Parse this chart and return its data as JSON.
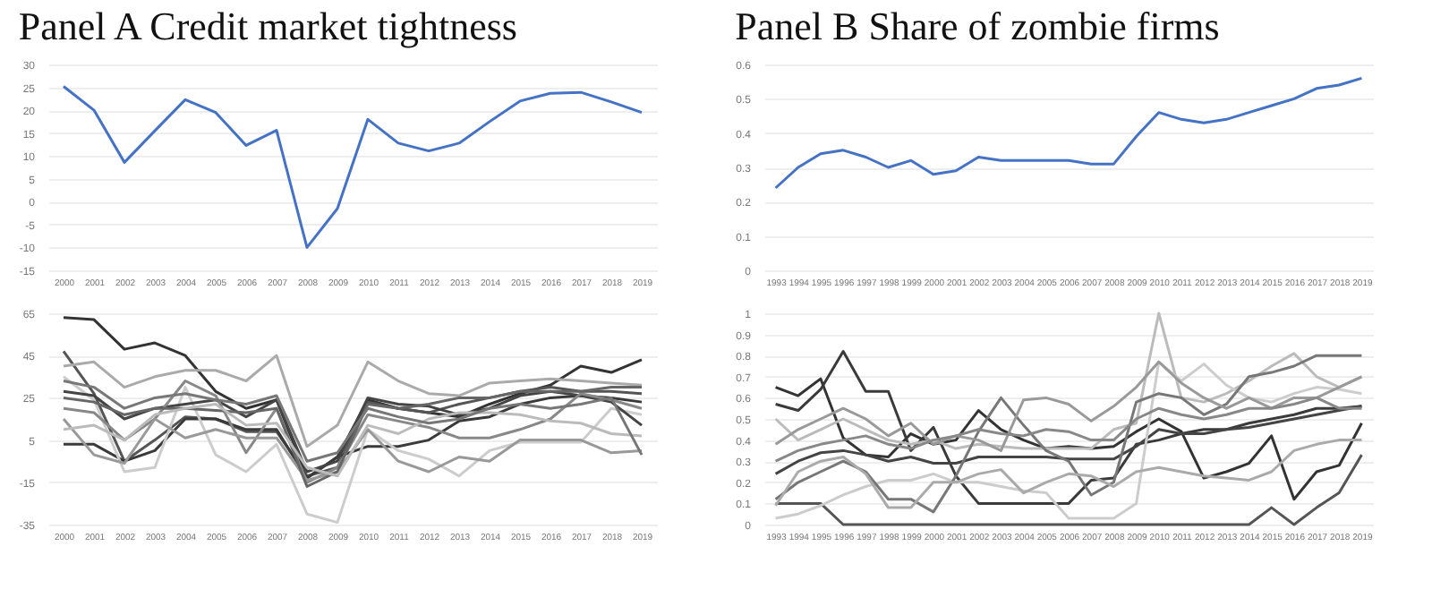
{
  "chart_data": [
    {
      "type": "line",
      "title": "Panel A Credit market tightness",
      "categories": [
        "2000",
        "2001",
        "2002",
        "2003",
        "2004",
        "2005",
        "2006",
        "2007",
        "2008",
        "2009",
        "2010",
        "2011",
        "2012",
        "2013",
        "2014",
        "2015",
        "2016",
        "2017",
        "2018",
        "2019"
      ],
      "series": [
        {
          "color": "#4472c4",
          "values": [
            25.2,
            20,
            8.6,
            15.5,
            22.3,
            19.5,
            12.3,
            15.6,
            -10,
            -1.5,
            18,
            12.8,
            11.1,
            12.8,
            17.5,
            22,
            23.7,
            23.9,
            21.8,
            19.5
          ]
        }
      ],
      "ylim": [
        -15,
        30
      ],
      "yticks": [
        -15,
        -10,
        -5,
        0,
        5,
        10,
        15,
        20,
        25,
        30
      ],
      "grid": "y"
    },
    {
      "type": "line",
      "title": "Panel B Share of zombie firms",
      "categories": [
        "1993",
        "1994",
        "1995",
        "1996",
        "1997",
        "1998",
        "1999",
        "2000",
        "2001",
        "2002",
        "2003",
        "2004",
        "2005",
        "2006",
        "2007",
        "2008",
        "2009",
        "2010",
        "2011",
        "2012",
        "2013",
        "2014",
        "2015",
        "2016",
        "2017",
        "2018",
        "2019"
      ],
      "series": [
        {
          "color": "#4472c4",
          "values": [
            0.24,
            0.3,
            0.34,
            0.35,
            0.33,
            0.3,
            0.32,
            0.28,
            0.29,
            0.33,
            0.32,
            0.32,
            0.32,
            0.32,
            0.31,
            0.31,
            0.39,
            0.46,
            0.44,
            0.43,
            0.44,
            0.46,
            0.48,
            0.5,
            0.53,
            0.54,
            0.56
          ]
        }
      ],
      "ylim": [
        0,
        0.6
      ],
      "yticks": [
        0,
        0.1,
        0.2,
        0.3,
        0.4,
        0.5,
        0.6
      ],
      "grid": "y"
    },
    {
      "type": "line",
      "categories": [
        "2000",
        "2001",
        "2002",
        "2003",
        "2004",
        "2005",
        "2006",
        "2007",
        "2008",
        "2009",
        "2010",
        "2011",
        "2012",
        "2013",
        "2014",
        "2015",
        "2016",
        "2017",
        "2018",
        "2019"
      ],
      "series": [
        {
          "color": "#333333",
          "values": [
            63,
            62,
            48,
            51,
            45,
            28,
            20,
            24,
            -13,
            -3,
            24,
            20,
            18,
            16,
            22,
            27,
            31,
            40,
            37,
            43
          ]
        },
        {
          "color": "#555555",
          "values": [
            47,
            27,
            -5,
            5,
            16,
            15,
            9,
            9,
            -12,
            -8,
            23,
            20,
            18,
            22,
            25,
            28,
            30,
            28,
            28,
            27
          ]
        },
        {
          "color": "#3a3a3a",
          "values": [
            3,
            3,
            -5,
            0,
            15,
            15,
            10,
            10,
            -13,
            -3,
            2,
            2,
            5,
            14,
            16,
            22,
            25,
            26,
            25,
            23
          ]
        },
        {
          "color": "#aaaaaa",
          "values": [
            40,
            42,
            30,
            35,
            38,
            38,
            33,
            45,
            2,
            12,
            42,
            33,
            27,
            26,
            32,
            33,
            34,
            33,
            32,
            31
          ]
        },
        {
          "color": "#cccccc",
          "values": [
            35,
            24,
            -10,
            -8,
            30,
            -2,
            -10,
            3,
            -30,
            -34,
            10,
            0,
            -4,
            -12,
            0,
            4,
            4,
            4,
            20,
            17
          ]
        },
        {
          "color": "#444444",
          "values": [
            28,
            26,
            15,
            20,
            22,
            24,
            16,
            24,
            -10,
            -5,
            25,
            22,
            21,
            17,
            20,
            26,
            28,
            26,
            23,
            12
          ]
        },
        {
          "color": "#888888",
          "values": [
            20,
            18,
            5,
            15,
            33,
            26,
            -1,
            20,
            -15,
            -8,
            17,
            14,
            11,
            6,
            6,
            10,
            15,
            27,
            24,
            20
          ]
        },
        {
          "color": "#999999",
          "values": [
            15,
            -2,
            -6,
            15,
            6,
            10,
            6,
            6,
            -14,
            -10,
            10,
            -5,
            -10,
            -3,
            -5,
            5,
            5,
            5,
            -1,
            0
          ]
        },
        {
          "color": "#666666",
          "values": [
            25,
            23,
            17,
            20,
            20,
            19,
            18,
            20,
            -17,
            -10,
            22,
            20,
            22,
            25,
            25,
            28,
            28,
            28,
            30,
            30
          ]
        },
        {
          "color": "#bbbbbb",
          "values": [
            10,
            12,
            5,
            17,
            20,
            22,
            12,
            13,
            -8,
            -12,
            12,
            8,
            15,
            18,
            18,
            17,
            14,
            13,
            8,
            7
          ]
        },
        {
          "color": "#777777",
          "values": [
            33,
            30,
            20,
            25,
            27,
            24,
            22,
            26,
            -5,
            -1,
            20,
            16,
            13,
            15,
            20,
            22,
            20,
            22,
            25,
            -2
          ]
        }
      ],
      "ylim": [
        -35,
        65
      ],
      "yticks": [
        -35,
        -15,
        5,
        25,
        45,
        65
      ],
      "grid": "y"
    },
    {
      "type": "line",
      "categories": [
        "1993",
        "1994",
        "1995",
        "1996",
        "1997",
        "1998",
        "1999",
        "2000",
        "2001",
        "2002",
        "2003",
        "2004",
        "2005",
        "2006",
        "2007",
        "2008",
        "2009",
        "2010",
        "2011",
        "2012",
        "2013",
        "2014",
        "2015",
        "2016",
        "2017",
        "2018",
        "2019"
      ],
      "series": [
        {
          "color": "#333333",
          "values": [
            0.65,
            0.61,
            0.69,
            0.41,
            0.33,
            0.32,
            0.43,
            0.38,
            0.4,
            0.54,
            0.45,
            0.4,
            0.36,
            0.37,
            0.36,
            0.37,
            0.44,
            0.5,
            0.44,
            0.22,
            0.25,
            0.29,
            0.42,
            0.12,
            0.25,
            0.28,
            0.48
          ]
        },
        {
          "color": "#3a3a3a",
          "values": [
            0.57,
            0.54,
            0.64,
            0.82,
            0.63,
            0.63,
            0.35,
            0.46,
            0.23,
            0.1,
            0.1,
            0.1,
            0.1,
            0.1,
            0.21,
            0.22,
            0.38,
            0.4,
            0.43,
            0.45,
            0.45,
            0.48,
            0.5,
            0.52,
            0.55,
            0.55,
            0.56
          ]
        },
        {
          "color": "#444444",
          "values": [
            0.24,
            0.3,
            0.34,
            0.35,
            0.33,
            0.3,
            0.32,
            0.29,
            0.29,
            0.32,
            0.32,
            0.32,
            0.32,
            0.31,
            0.31,
            0.31,
            0.37,
            0.45,
            0.43,
            0.43,
            0.45,
            0.46,
            0.48,
            0.5,
            0.52,
            0.54,
            0.56
          ]
        },
        {
          "color": "#bbbbbb",
          "values": [
            0.5,
            0.4,
            0.45,
            0.5,
            0.45,
            0.4,
            0.38,
            0.4,
            0.36,
            0.38,
            0.37,
            0.36,
            0.36,
            0.36,
            0.36,
            0.45,
            0.48,
            1,
            0.6,
            0.58,
            0.62,
            0.68,
            0.75,
            0.81,
            0.7,
            0.65,
            0.7
          ]
        },
        {
          "color": "#555555",
          "values": [
            0.1,
            0.1,
            0.1,
            0,
            0,
            0,
            0,
            0,
            0,
            0,
            0,
            0,
            0,
            0,
            0,
            0,
            0,
            0,
            0,
            0,
            0,
            0,
            0.08,
            0,
            0.08,
            0.15,
            0.33
          ]
        },
        {
          "color": "#cccccc",
          "values": [
            0.03,
            0.05,
            0.09,
            0.14,
            0.18,
            0.21,
            0.21,
            0.24,
            0.2,
            0.2,
            0.18,
            0.16,
            0.15,
            0.03,
            0.03,
            0.03,
            0.1,
            0.77,
            0.68,
            0.76,
            0.66,
            0.6,
            0.58,
            0.62,
            0.65,
            0.64,
            0.62
          ]
        },
        {
          "color": "#777777",
          "values": [
            0.12,
            0.2,
            0.25,
            0.3,
            0.25,
            0.12,
            0.12,
            0.06,
            0.23,
            0.44,
            0.6,
            0.47,
            0.35,
            0.3,
            0.14,
            0.2,
            0.58,
            0.62,
            0.6,
            0.52,
            0.57,
            0.7,
            0.72,
            0.75,
            0.8,
            0.8,
            0.8
          ]
        },
        {
          "color": "#999999",
          "values": [
            0.38,
            0.45,
            0.5,
            0.55,
            0.5,
            0.42,
            0.48,
            0.38,
            0.42,
            0.4,
            0.35,
            0.59,
            0.6,
            0.57,
            0.49,
            0.56,
            0.65,
            0.77,
            0.67,
            0.6,
            0.55,
            0.6,
            0.55,
            0.6,
            0.6,
            0.65,
            0.7
          ]
        },
        {
          "color": "#aaaaaa",
          "values": [
            0.09,
            0.25,
            0.3,
            0.32,
            0.24,
            0.08,
            0.08,
            0.2,
            0.2,
            0.24,
            0.26,
            0.15,
            0.2,
            0.24,
            0.23,
            0.18,
            0.25,
            0.27,
            0.25,
            0.23,
            0.22,
            0.21,
            0.25,
            0.35,
            0.38,
            0.4,
            0.4
          ]
        },
        {
          "color": "#888888",
          "values": [
            0.3,
            0.35,
            0.38,
            0.4,
            0.42,
            0.38,
            0.36,
            0.4,
            0.42,
            0.45,
            0.43,
            0.42,
            0.45,
            0.44,
            0.4,
            0.4,
            0.5,
            0.55,
            0.52,
            0.5,
            0.52,
            0.55,
            0.55,
            0.57,
            0.6,
            0.55,
            0.55
          ]
        }
      ],
      "ylim": [
        0,
        1
      ],
      "yticks": [
        0,
        0.1,
        0.2,
        0.3,
        0.4,
        0.5,
        0.6,
        0.7,
        0.8,
        0.9,
        1
      ],
      "grid": "y"
    }
  ]
}
